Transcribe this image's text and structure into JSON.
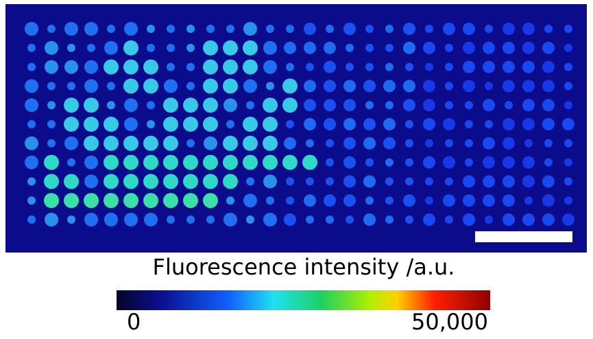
{
  "colorbar": {
    "title": "Fluorescence intensity /a.u.",
    "ticks": [
      0,
      {
        "value": 50000,
        "label": "50,000"
      }
    ]
  }
}
